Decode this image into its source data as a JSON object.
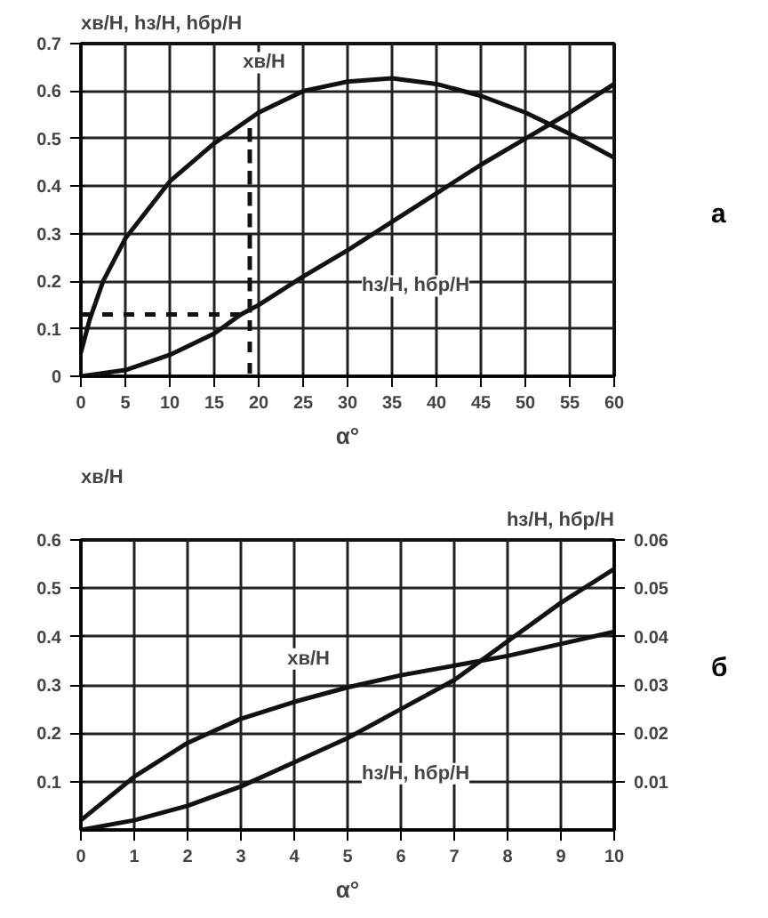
{
  "chart_data": [
    {
      "type": "line",
      "ylabel": "xв/H, hз/H, hбр/H",
      "xlabel": "α°",
      "annotations": [
        "а"
      ],
      "xlim": [
        0,
        60
      ],
      "xticks": [
        0,
        5,
        10,
        15,
        20,
        25,
        30,
        35,
        40,
        45,
        50,
        55,
        60
      ],
      "ylim": [
        0,
        0.7
      ],
      "yticks": [
        0,
        0.1,
        0.2,
        0.3,
        0.4,
        0.5,
        0.6,
        0.7
      ],
      "grid": true,
      "marker": "none",
      "series": [
        {
          "name": "xв/H",
          "color": "#111111",
          "x": [
            0,
            1,
            2.5,
            5,
            10,
            15,
            20,
            25,
            30,
            35,
            40,
            45,
            50,
            55,
            60
          ],
          "values": [
            0.05,
            0.12,
            0.2,
            0.29,
            0.41,
            0.49,
            0.555,
            0.6,
            0.62,
            0.627,
            0.615,
            0.59,
            0.555,
            0.51,
            0.46
          ]
        },
        {
          "name": "hз/H, hбр/H",
          "color": "#111111",
          "x": [
            0,
            5,
            10,
            15,
            18,
            20,
            25,
            30,
            35,
            40,
            45,
            50,
            55,
            60
          ],
          "values": [
            0,
            0.013,
            0.045,
            0.09,
            0.13,
            0.15,
            0.21,
            0.265,
            0.325,
            0.385,
            0.445,
            0.5,
            0.555,
            0.615
          ]
        },
        {
          "color": "#111111",
          "line_style": "dashed",
          "x": [
            0,
            19,
            19,
            19
          ],
          "values": [
            0.13,
            0.13,
            0.53,
            0
          ]
        }
      ]
    },
    {
      "type": "line",
      "ylabel": "xв/H",
      "y2label": "hз/H, hбр/H",
      "xlabel": "α°",
      "annotations": [
        "б"
      ],
      "xlim": [
        0,
        10
      ],
      "xticks": [
        0,
        1,
        2,
        3,
        4,
        5,
        6,
        7,
        8,
        9,
        10
      ],
      "ylim": [
        0,
        0.6
      ],
      "yticks": [
        0.1,
        0.2,
        0.3,
        0.4,
        0.5,
        0.6
      ],
      "y2lim": [
        0,
        0.06
      ],
      "y2ticks": [
        0.01,
        0.02,
        0.03,
        0.04,
        0.05,
        0.06
      ],
      "grid": true,
      "marker": "none",
      "series": [
        {
          "name": "xв/H",
          "color": "#111111",
          "x": [
            0,
            1,
            2,
            3,
            4,
            5,
            6,
            7,
            8,
            9,
            10
          ],
          "values": [
            0.02,
            0.11,
            0.18,
            0.23,
            0.265,
            0.295,
            0.32,
            0.34,
            0.36,
            0.385,
            0.41
          ]
        },
        {
          "name": "hз/H, hбр/H",
          "color": "#111111",
          "axis": "y2",
          "x": [
            0,
            1,
            2,
            3,
            4,
            5,
            6,
            7,
            8,
            9,
            10
          ],
          "values": [
            0,
            0.002,
            0.005,
            0.009,
            0.014,
            0.019,
            0.025,
            0.031,
            0.039,
            0.047,
            0.054
          ]
        }
      ]
    }
  ]
}
